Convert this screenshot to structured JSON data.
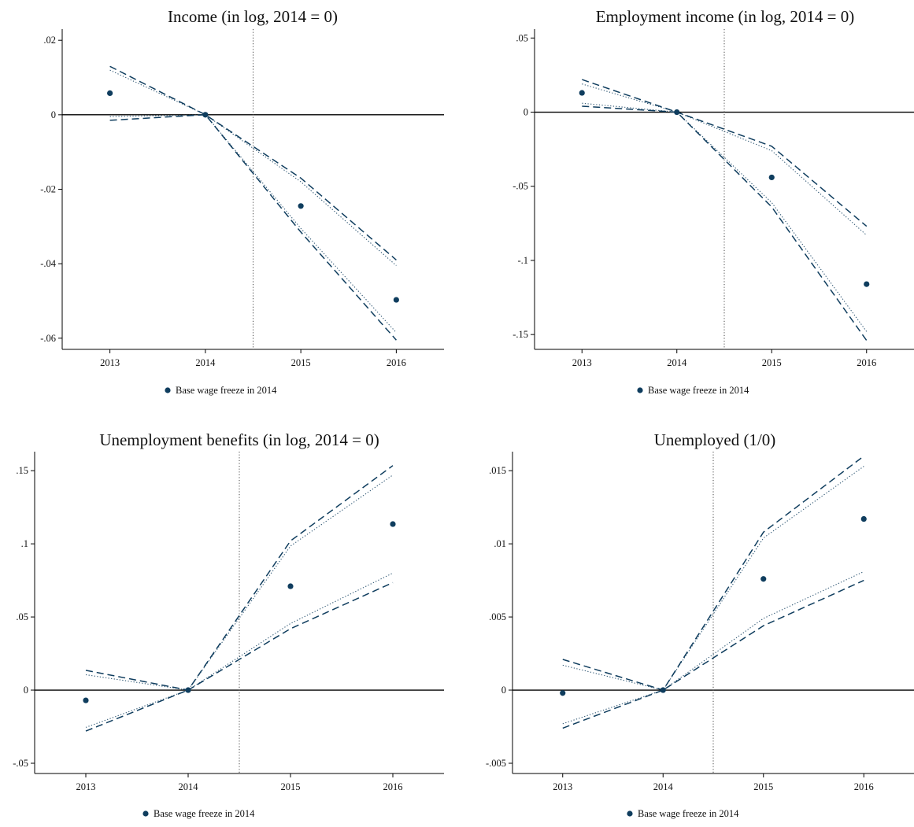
{
  "chart_data": [
    {
      "type": "line",
      "title": "Income (in log, 2014 = 0)",
      "x": [
        2013,
        2014,
        2015,
        2016
      ],
      "xlim": [
        2012.5,
        2016.5
      ],
      "ylim": [
        -0.063,
        0.023
      ],
      "yticks": [
        0.02,
        0,
        -0.02,
        -0.04,
        -0.06
      ],
      "ytick_labels": [
        ".02",
        "0",
        "-.02",
        "-.04",
        "-.06"
      ],
      "vline": 2014.5,
      "points": [
        0.0058,
        0,
        -0.0245,
        -0.0497
      ],
      "bounds": [
        {
          "style": "dash",
          "values": [
            0.013,
            0,
            -0.017,
            -0.039
          ]
        },
        {
          "style": "dash",
          "values": [
            -0.0015,
            0,
            -0.0315,
            -0.0605
          ]
        },
        {
          "style": "dot",
          "values": [
            0.012,
            0,
            -0.018,
            -0.0405
          ]
        },
        {
          "style": "dot",
          "values": [
            -0.0005,
            0,
            -0.0305,
            -0.0585
          ]
        }
      ],
      "legend": "Base wage freeze in 2014"
    },
    {
      "type": "line",
      "title": "Employment income (in log, 2014 = 0)",
      "x": [
        2013,
        2014,
        2015,
        2016
      ],
      "xlim": [
        2012.5,
        2016.5
      ],
      "ylim": [
        -0.16,
        0.056
      ],
      "yticks": [
        0.05,
        0,
        -0.05,
        -0.1,
        -0.15
      ],
      "ytick_labels": [
        ".05",
        "0",
        "-.05",
        "-.1",
        "-.15"
      ],
      "vline": 2014.5,
      "points": [
        0.013,
        0,
        -0.044,
        -0.116
      ],
      "bounds": [
        {
          "style": "dash",
          "values": [
            0.022,
            0,
            -0.023,
            -0.077
          ]
        },
        {
          "style": "dash",
          "values": [
            0.004,
            0,
            -0.064,
            -0.154
          ]
        },
        {
          "style": "dot",
          "values": [
            0.019,
            0,
            -0.026,
            -0.083
          ]
        },
        {
          "style": "dot",
          "values": [
            0.006,
            0,
            -0.061,
            -0.148
          ]
        }
      ],
      "legend": "Base wage freeze in 2014"
    },
    {
      "type": "line",
      "title": "Unemployment benefits (in log, 2014 = 0)",
      "x": [
        2013,
        2014,
        2015,
        2016
      ],
      "xlim": [
        2012.5,
        2016.5
      ],
      "ylim": [
        -0.057,
        0.163
      ],
      "yticks": [
        0.15,
        0.1,
        0.05,
        0,
        -0.05
      ],
      "ytick_labels": [
        ".15",
        ".1",
        ".05",
        "0",
        "-.05"
      ],
      "vline": 2014.5,
      "points": [
        -0.007,
        0,
        0.071,
        0.1135
      ],
      "bounds": [
        {
          "style": "dash",
          "values": [
            0.0135,
            0,
            0.102,
            0.1535
          ]
        },
        {
          "style": "dash",
          "values": [
            -0.028,
            0,
            0.042,
            0.0735
          ]
        },
        {
          "style": "dot",
          "values": [
            0.0105,
            0,
            0.0985,
            0.147
          ]
        },
        {
          "style": "dot",
          "values": [
            -0.0255,
            0,
            0.0455,
            0.08
          ]
        }
      ],
      "legend": "Base wage freeze in 2014"
    },
    {
      "type": "line",
      "title": "Unemployed (1/0)",
      "x": [
        2013,
        2014,
        2015,
        2016
      ],
      "xlim": [
        2012.5,
        2016.5
      ],
      "ylim": [
        -0.0057,
        0.0163
      ],
      "yticks": [
        0.015,
        0.01,
        0.005,
        0,
        -0.005
      ],
      "ytick_labels": [
        ".015",
        ".01",
        ".005",
        "0",
        "-.005"
      ],
      "vline": 2014.5,
      "points": [
        -0.0002,
        0,
        0.0076,
        0.0117
      ],
      "bounds": [
        {
          "style": "dash",
          "values": [
            0.0021,
            0,
            0.0108,
            0.016
          ]
        },
        {
          "style": "dash",
          "values": [
            -0.0026,
            0,
            0.0044,
            0.0075
          ]
        },
        {
          "style": "dot",
          "values": [
            0.0017,
            0,
            0.0104,
            0.0153
          ]
        },
        {
          "style": "dot",
          "values": [
            -0.0023,
            0,
            0.0049,
            0.0081
          ]
        }
      ],
      "legend": "Base wage freeze in 2014"
    }
  ],
  "colors": {
    "series": "#0f3d5e",
    "axis": "#000000",
    "vline": "#444444"
  }
}
